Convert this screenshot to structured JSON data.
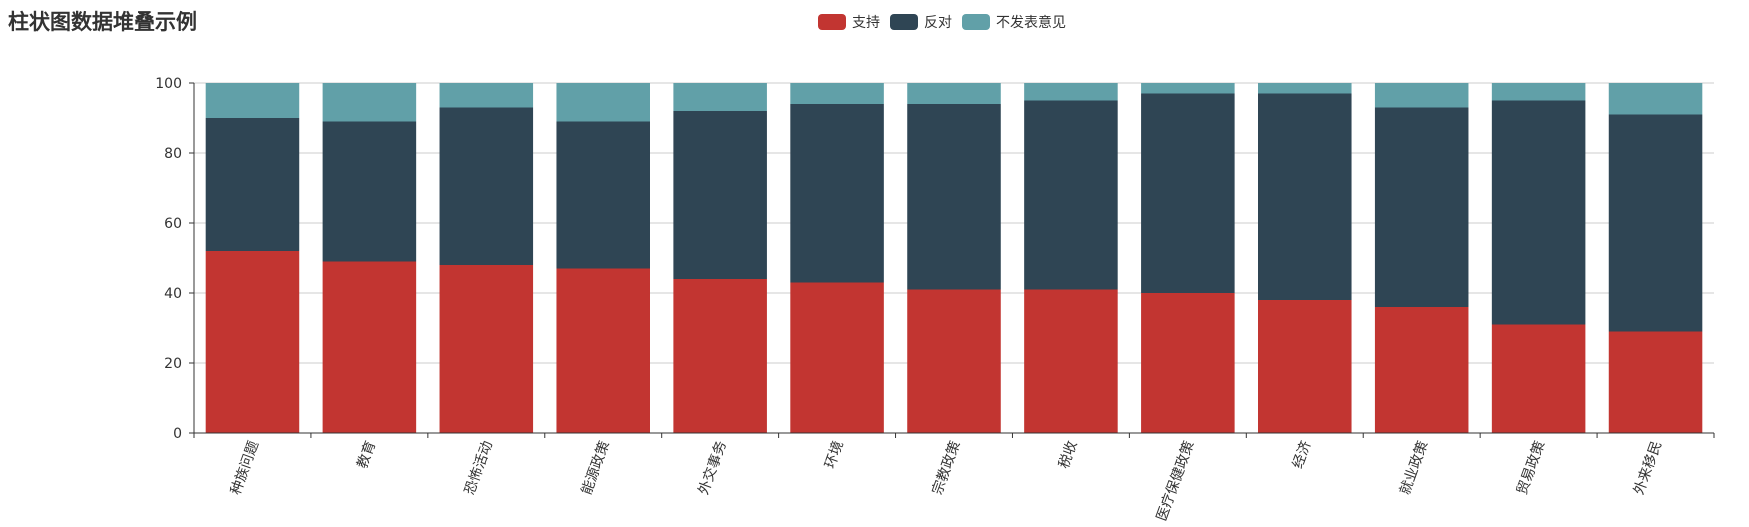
{
  "page": {
    "title": "柱状图数据堆叠示例"
  },
  "legend": {
    "items": [
      {
        "label": "支持",
        "color": "#c23531"
      },
      {
        "label": "反对",
        "color": "#2f4554"
      },
      {
        "label": "不发表意见",
        "color": "#61a0a8"
      }
    ]
  },
  "chart_data": {
    "type": "bar",
    "stacked": true,
    "title": "柱状图数据堆叠示例",
    "categories": [
      "种族问题",
      "教育",
      "恐怖活动",
      "能源政策",
      "外交事务",
      "环境",
      "宗教政策",
      "税收",
      "医疗保健政策",
      "经济",
      "就业政策",
      "贸易政策",
      "外来移民"
    ],
    "series": [
      {
        "name": "支持",
        "color": "#c23531",
        "values": [
          52,
          49,
          48,
          47,
          44,
          43,
          41,
          41,
          40,
          38,
          36,
          31,
          29
        ]
      },
      {
        "name": "反对",
        "color": "#2f4554",
        "values": [
          38,
          40,
          45,
          42,
          48,
          51,
          53,
          54,
          57,
          59,
          57,
          64,
          62
        ]
      },
      {
        "name": "不发表意见",
        "color": "#61a0a8",
        "values": [
          10,
          11,
          7,
          11,
          8,
          6,
          6,
          5,
          3,
          3,
          7,
          5,
          9
        ]
      }
    ],
    "ylim": [
      0,
      100
    ],
    "yticks": [
      0,
      20,
      40,
      60,
      80,
      100
    ],
    "grid": true,
    "legend_position": "top-center",
    "xlabel": "",
    "ylabel": ""
  }
}
